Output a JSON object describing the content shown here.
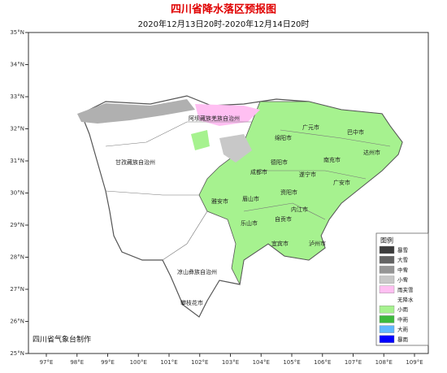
{
  "header": {
    "title": "四川省降水落区预报图",
    "subtitle": "2020年12月13日20时-2020年12月14日20时"
  },
  "axes": {
    "lat_labels": [
      "35°N",
      "34°N",
      "33°N",
      "32°N",
      "31°N",
      "30°N",
      "29°N",
      "28°N",
      "27°N",
      "26°N",
      "25°N"
    ],
    "lon_labels": [
      "97°E",
      "98°E",
      "99°E",
      "100°E",
      "101°E",
      "102°E",
      "103°E",
      "104°E",
      "105°E",
      "106°E",
      "107°E",
      "108°E",
      "109°E"
    ]
  },
  "regions": [
    "阿坝藏族羌族自治州",
    "广元市",
    "巴中市",
    "绵阳市",
    "达州市",
    "甘孜藏族自治州",
    "德阳市",
    "南充市",
    "成都市",
    "遂宁市",
    "广安市",
    "资阳市",
    "雅安市",
    "眉山市",
    "内江市",
    "乐山市",
    "自贡市",
    "宜宾市",
    "泸州市",
    "凉山彝族自治州",
    "攀枝花市"
  ],
  "legend": {
    "title": "图例",
    "items": [
      {
        "label": "暴雪",
        "color": "#3c3c3c"
      },
      {
        "label": "大雪",
        "color": "#646464"
      },
      {
        "label": "中雪",
        "color": "#969696"
      },
      {
        "label": "小雪",
        "color": "#c8c8c8"
      },
      {
        "label": "雨夹雪",
        "color": "#ffbff2"
      },
      {
        "label": "无降水",
        "color": "#ffffff"
      },
      {
        "label": "小雨",
        "color": "#a6f28f"
      },
      {
        "label": "中雨",
        "color": "#3dba3d"
      },
      {
        "label": "大雨",
        "color": "#61b8ff"
      },
      {
        "label": "暴雨",
        "color": "#0000fe"
      }
    ]
  },
  "footer": "四川省气象台制作"
}
